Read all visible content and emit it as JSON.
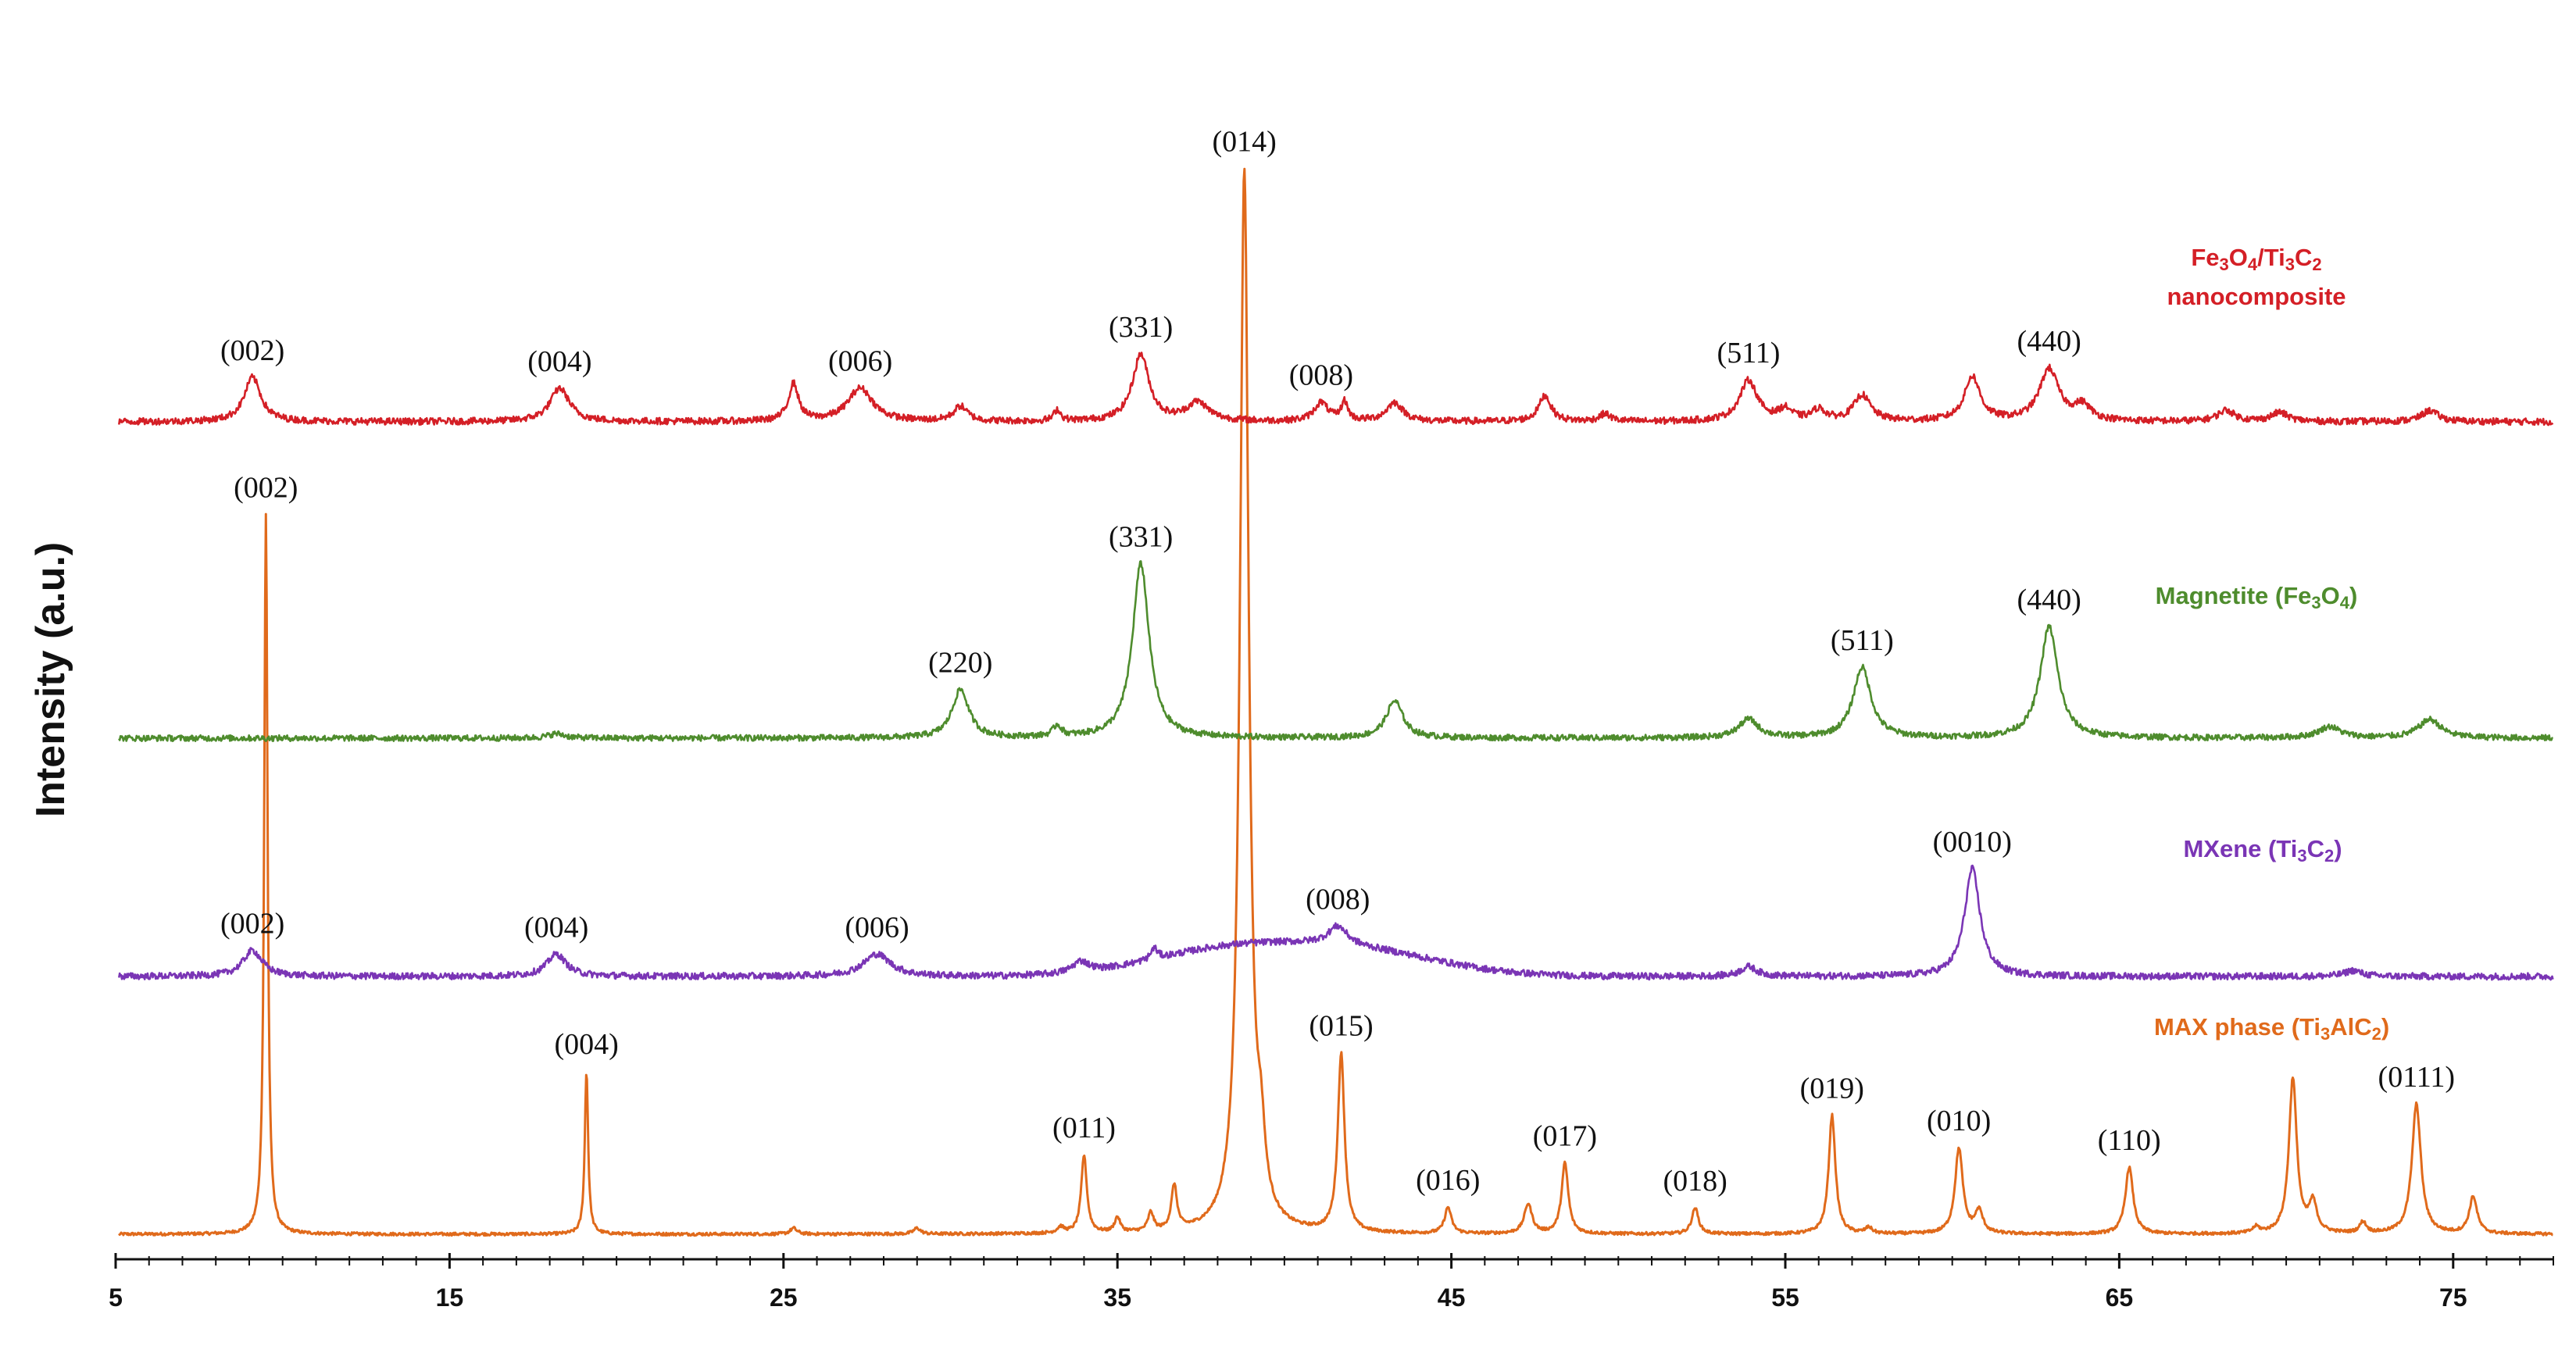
{
  "chart_data": {
    "type": "line",
    "title": "",
    "xlabel": "",
    "ylabel": "Intensity (a.u.)",
    "xlim": [
      5,
      78
    ],
    "x_ticks": [
      5,
      15,
      25,
      35,
      45,
      55,
      65,
      75
    ],
    "x_ticks_labels": [
      "5",
      "15",
      "25",
      "35",
      "45",
      "55",
      "65",
      "75"
    ],
    "grid": false,
    "series": [
      {
        "name": "MAX phase (Ti3AlC2)",
        "name_parts": [
          {
            "t": "MAX phase (Ti",
            "sub": false
          },
          {
            "t": "3",
            "sub": true
          },
          {
            "t": "AlC",
            "sub": false
          },
          {
            "t": "2",
            "sub": true
          },
          {
            "t": ")",
            "sub": false
          }
        ],
        "color": "#e06a1b",
        "baseline": 0,
        "noise": 0.2,
        "peaks": [
          {
            "x": 9.5,
            "h": 97,
            "w": 0.06,
            "label": "(002)"
          },
          {
            "x": 19.1,
            "h": 22,
            "w": 0.06,
            "label": "(004)"
          },
          {
            "x": 25.3,
            "h": 0.8,
            "w": 0.12
          },
          {
            "x": 29.0,
            "h": 0.8,
            "w": 0.12
          },
          {
            "x": 33.3,
            "h": 0.8,
            "w": 0.12
          },
          {
            "x": 34.0,
            "h": 10.5,
            "w": 0.1,
            "label": "(011)"
          },
          {
            "x": 35.0,
            "h": 2,
            "w": 0.1
          },
          {
            "x": 36.0,
            "h": 2.5,
            "w": 0.1
          },
          {
            "x": 36.7,
            "h": 6,
            "w": 0.1
          },
          {
            "x": 38.8,
            "h": 143,
            "w": 0.16,
            "label": "(014)"
          },
          {
            "x": 39.3,
            "h": 8,
            "w": 0.14
          },
          {
            "x": 41.7,
            "h": 24,
            "w": 0.12,
            "label": "(015)"
          },
          {
            "x": 44.9,
            "h": 3.5,
            "w": 0.12,
            "label": "(016)"
          },
          {
            "x": 47.3,
            "h": 4,
            "w": 0.14
          },
          {
            "x": 48.4,
            "h": 9.5,
            "w": 0.12,
            "label": "(017)"
          },
          {
            "x": 52.3,
            "h": 3.5,
            "w": 0.12,
            "label": "(018)"
          },
          {
            "x": 56.4,
            "h": 16,
            "w": 0.12,
            "label": "(019)"
          },
          {
            "x": 57.5,
            "h": 0.8,
            "w": 0.12
          },
          {
            "x": 60.2,
            "h": 11.5,
            "w": 0.14,
            "label": "(010)"
          },
          {
            "x": 60.8,
            "h": 3,
            "w": 0.14
          },
          {
            "x": 65.3,
            "h": 9,
            "w": 0.14,
            "label": "(110)"
          },
          {
            "x": 69.1,
            "h": 0.8,
            "w": 0.12
          },
          {
            "x": 70.2,
            "h": 21,
            "w": 0.14
          },
          {
            "x": 70.8,
            "h": 4,
            "w": 0.14
          },
          {
            "x": 72.3,
            "h": 1.5,
            "w": 0.12
          },
          {
            "x": 73.9,
            "h": 17.5,
            "w": 0.16,
            "label": "(0111)"
          },
          {
            "x": 75.6,
            "h": 5,
            "w": 0.14
          }
        ]
      },
      {
        "name": "MXene (Ti3C2)",
        "name_parts": [
          {
            "t": "MXene (Ti",
            "sub": false
          },
          {
            "t": "3",
            "sub": true
          },
          {
            "t": "C",
            "sub": false
          },
          {
            "t": "2",
            "sub": true
          },
          {
            "t": ")",
            "sub": false
          }
        ],
        "color": "#7a35b5",
        "baseline": 35.5,
        "noise": 0.45,
        "bumps": [
          {
            "x": 38.0,
            "h": 3,
            "w": 3.2
          },
          {
            "x": 42.0,
            "h": 3.5,
            "w": 3.6
          }
        ],
        "peaks": [
          {
            "x": 9.1,
            "h": 3.5,
            "w": 0.35,
            "label": "(002)"
          },
          {
            "x": 18.2,
            "h": 3,
            "w": 0.35,
            "label": "(004)"
          },
          {
            "x": 27.8,
            "h": 3,
            "w": 0.5,
            "label": "(006)"
          },
          {
            "x": 33.9,
            "h": 1.5,
            "w": 0.3
          },
          {
            "x": 36.1,
            "h": 1.5,
            "w": 0.12
          },
          {
            "x": 41.6,
            "h": 2.5,
            "w": 0.35,
            "label": "(008)"
          },
          {
            "x": 53.9,
            "h": 1.3,
            "w": 0.3
          },
          {
            "x": 60.6,
            "h": 14.5,
            "w": 0.28,
            "label": "(0010)"
          },
          {
            "x": 72.0,
            "h": 0.8,
            "w": 0.3
          }
        ]
      },
      {
        "name": "Magnetite (Fe3O4)",
        "name_parts": [
          {
            "t": "Magnetite (Fe",
            "sub": false
          },
          {
            "t": "3",
            "sub": true
          },
          {
            "t": "O",
            "sub": false
          },
          {
            "t": "4",
            "sub": true
          },
          {
            "t": ")",
            "sub": false
          }
        ],
        "color": "#4e8c2d",
        "baseline": 65,
        "noise": 0.4,
        "peaks": [
          {
            "x": 18.2,
            "h": 0.6,
            "w": 0.3
          },
          {
            "x": 30.3,
            "h": 6.5,
            "w": 0.3,
            "label": "(220)"
          },
          {
            "x": 33.2,
            "h": 1.5,
            "w": 0.15
          },
          {
            "x": 35.7,
            "h": 23.5,
            "w": 0.3,
            "label": "(331)"
          },
          {
            "x": 43.3,
            "h": 5,
            "w": 0.3
          },
          {
            "x": 53.9,
            "h": 2.5,
            "w": 0.35
          },
          {
            "x": 57.3,
            "h": 9.5,
            "w": 0.32,
            "label": "(511)"
          },
          {
            "x": 62.9,
            "h": 15,
            "w": 0.32,
            "label": "(440)"
          },
          {
            "x": 71.3,
            "h": 1.5,
            "w": 0.4
          },
          {
            "x": 74.3,
            "h": 2.5,
            "w": 0.4
          }
        ]
      },
      {
        "name": "Fe3O4/Ti3C2 nanocomposite",
        "name_parts": [
          {
            "t": "Fe",
            "sub": false
          },
          {
            "t": "3",
            "sub": true
          },
          {
            "t": "O",
            "sub": false
          },
          {
            "t": "4",
            "sub": true
          },
          {
            "t": "/Ti",
            "sub": false
          },
          {
            "t": "3",
            "sub": true
          },
          {
            "t": "C",
            "sub": false
          },
          {
            "t": "2",
            "sub": true
          }
        ],
        "name_line2": "nanocomposite",
        "color": "#d41f26",
        "baseline": 99.5,
        "noise": 0.45,
        "peaks": [
          {
            "x": 9.1,
            "h": 6,
            "w": 0.3,
            "label": "(002)"
          },
          {
            "x": 18.3,
            "h": 4.5,
            "w": 0.35,
            "label": "(004)"
          },
          {
            "x": 25.3,
            "h": 5,
            "w": 0.18
          },
          {
            "x": 27.3,
            "h": 4.5,
            "w": 0.45,
            "label": "(006)"
          },
          {
            "x": 30.3,
            "h": 2,
            "w": 0.25
          },
          {
            "x": 33.2,
            "h": 1.5,
            "w": 0.12
          },
          {
            "x": 35.7,
            "h": 9,
            "w": 0.3,
            "label": "(331)"
          },
          {
            "x": 37.4,
            "h": 2.5,
            "w": 0.4
          },
          {
            "x": 41.1,
            "h": 2.5,
            "w": 0.25,
            "label": "(008)"
          },
          {
            "x": 41.8,
            "h": 2.5,
            "w": 0.12
          },
          {
            "x": 43.3,
            "h": 2.5,
            "w": 0.3
          },
          {
            "x": 47.8,
            "h": 3.5,
            "w": 0.22
          },
          {
            "x": 49.6,
            "h": 1,
            "w": 0.2
          },
          {
            "x": 53.9,
            "h": 5.5,
            "w": 0.32,
            "label": "(511)"
          },
          {
            "x": 55.0,
            "h": 1.5,
            "w": 0.25
          },
          {
            "x": 56.0,
            "h": 1.5,
            "w": 0.25
          },
          {
            "x": 57.3,
            "h": 3.5,
            "w": 0.3
          },
          {
            "x": 60.6,
            "h": 6,
            "w": 0.28
          },
          {
            "x": 62.9,
            "h": 7,
            "w": 0.35,
            "label": "(440)"
          },
          {
            "x": 63.9,
            "h": 2,
            "w": 0.3
          },
          {
            "x": 68.2,
            "h": 1.5,
            "w": 0.3
          },
          {
            "x": 69.8,
            "h": 1.2,
            "w": 0.3
          },
          {
            "x": 74.3,
            "h": 1.5,
            "w": 0.3
          }
        ]
      }
    ]
  }
}
